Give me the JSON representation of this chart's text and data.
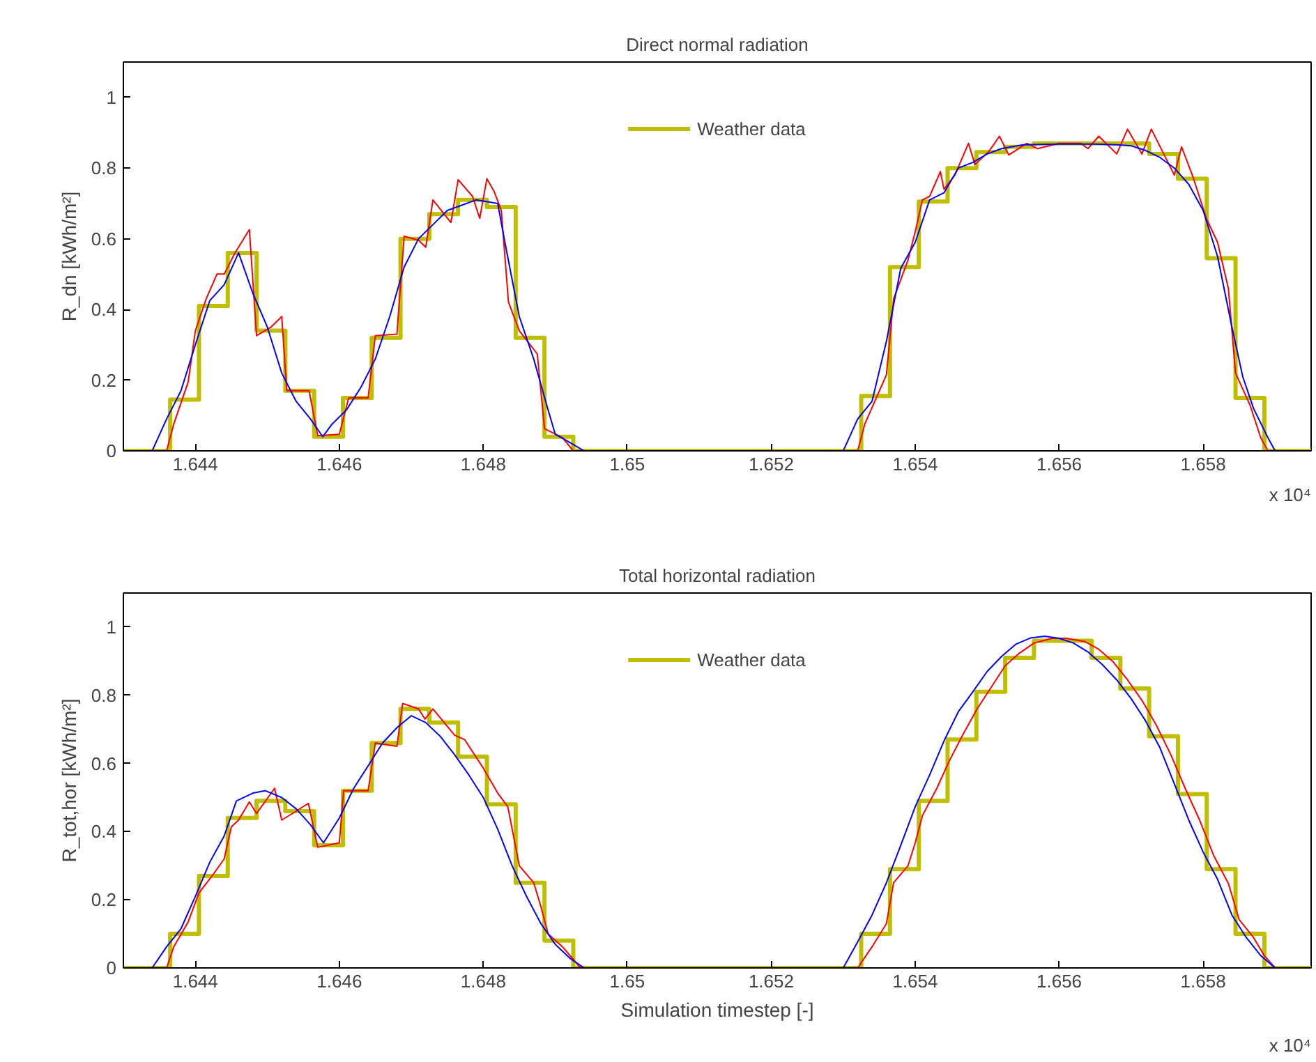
{
  "chart_data": [
    {
      "type": "line",
      "title": "Direct normal radiation",
      "ylabel": "R_dn [kWh/m²]",
      "annotations": [
        "x 10⁴"
      ],
      "xlim": [
        1.643,
        1.6595
      ],
      "ylim": [
        0,
        1.1
      ],
      "xticks": [
        1.644,
        1.646,
        1.648,
        1.65,
        1.652,
        1.654,
        1.656,
        1.658
      ],
      "yticks": [
        0,
        0.2,
        0.4,
        0.6,
        0.8,
        1
      ],
      "grid": false,
      "legend": "top",
      "series": [
        {
          "name": "Weather data",
          "type": "step",
          "color": "#bfbf00",
          "x": [
            1.643,
            1.64365,
            1.64405,
            1.64445,
            1.64485,
            1.64525,
            1.64565,
            1.64605,
            1.64645,
            1.64685,
            1.64725,
            1.64765,
            1.64805,
            1.64845,
            1.64885,
            1.64925,
            1.65325,
            1.65365,
            1.65405,
            1.65445,
            1.65485,
            1.65525,
            1.65565,
            1.65605,
            1.65645,
            1.65685,
            1.65725,
            1.65765,
            1.65805,
            1.65845,
            1.65885,
            1.6595
          ],
          "values": [
            0,
            0.145,
            0.41,
            0.56,
            0.34,
            0.17,
            0.04,
            0.15,
            0.32,
            0.6,
            0.67,
            0.71,
            0.69,
            0.32,
            0.04,
            0,
            0.155,
            0.52,
            0.705,
            0.8,
            0.845,
            0.86,
            0.87,
            0.87,
            0.87,
            0.87,
            0.84,
            0.77,
            0.545,
            0.15,
            0,
            0
          ]
        },
        {
          "color": "#ff0000",
          "x": [
            1.643,
            1.6436,
            1.6437,
            1.6439,
            1.644,
            1.64415,
            1.6443,
            1.6444,
            1.64455,
            1.64475,
            1.64485,
            1.64505,
            1.6452,
            1.64527,
            1.64558,
            1.6457,
            1.646,
            1.64613,
            1.6464,
            1.6465,
            1.6468,
            1.6469,
            1.6471,
            1.6472,
            1.6473,
            1.64755,
            1.64765,
            1.64785,
            1.64795,
            1.64805,
            1.64815,
            1.64825,
            1.64835,
            1.6485,
            1.64875,
            1.64885,
            1.6491,
            1.64925,
            1.6532,
            1.6533,
            1.6536,
            1.6537,
            1.6539,
            1.654,
            1.6541,
            1.6542,
            1.65435,
            1.6544,
            1.65455,
            1.65474,
            1.65483,
            1.65502,
            1.65517,
            1.6553,
            1.65555,
            1.6557,
            1.656,
            1.6563,
            1.6564,
            1.65655,
            1.6568,
            1.65695,
            1.65715,
            1.65728,
            1.6576,
            1.6577,
            1.65785,
            1.65805,
            1.6582,
            1.65835,
            1.65845,
            1.65865,
            1.6588,
            1.6589,
            1.6595
          ],
          "values": [
            0,
            0,
            0.076,
            0.195,
            0.34,
            0.43,
            0.5,
            0.5,
            0.56,
            0.626,
            0.326,
            0.35,
            0.38,
            0.17,
            0.17,
            0.043,
            0.047,
            0.15,
            0.15,
            0.326,
            0.33,
            0.607,
            0.596,
            0.576,
            0.71,
            0.646,
            0.767,
            0.72,
            0.658,
            0.77,
            0.734,
            0.68,
            0.42,
            0.34,
            0.274,
            0.063,
            0.037,
            0,
            0,
            0.076,
            0.215,
            0.43,
            0.54,
            0.62,
            0.71,
            0.72,
            0.79,
            0.74,
            0.78,
            0.87,
            0.81,
            0.846,
            0.89,
            0.837,
            0.87,
            0.855,
            0.87,
            0.87,
            0.855,
            0.89,
            0.84,
            0.91,
            0.84,
            0.91,
            0.78,
            0.86,
            0.78,
            0.655,
            0.59,
            0.46,
            0.22,
            0.13,
            0.037,
            0,
            0
          ]
        },
        {
          "color": "#0000ff",
          "x": [
            1.643,
            1.6434,
            1.6436,
            1.6438,
            1.644,
            1.6442,
            1.6444,
            1.6446,
            1.6448,
            1.645,
            1.6452,
            1.6454,
            1.6456,
            1.64577,
            1.6459,
            1.6461,
            1.6463,
            1.6465,
            1.6467,
            1.6469,
            1.6471,
            1.6473,
            1.6475,
            1.6477,
            1.6479,
            1.6482,
            1.6483,
            1.6485,
            1.6487,
            1.6489,
            1.649,
            1.6492,
            1.6494,
            1.653,
            1.6532,
            1.6534,
            1.6536,
            1.6538,
            1.654,
            1.6542,
            1.6544,
            1.6546,
            1.6548,
            1.655,
            1.6552,
            1.6555,
            1.656,
            1.6565,
            1.6568,
            1.657,
            1.6572,
            1.6574,
            1.6576,
            1.6578,
            1.658,
            1.6582,
            1.6584,
            1.65855,
            1.6587,
            1.6589,
            1.659,
            1.6595
          ],
          "values": [
            0,
            0,
            0.09,
            0.17,
            0.3,
            0.425,
            0.47,
            0.56,
            0.445,
            0.35,
            0.22,
            0.14,
            0.09,
            0.04,
            0.076,
            0.116,
            0.18,
            0.26,
            0.38,
            0.52,
            0.6,
            0.64,
            0.68,
            0.695,
            0.71,
            0.7,
            0.59,
            0.38,
            0.26,
            0.116,
            0.047,
            0.024,
            0,
            0,
            0.09,
            0.14,
            0.31,
            0.517,
            0.59,
            0.71,
            0.73,
            0.8,
            0.816,
            0.84,
            0.855,
            0.866,
            0.868,
            0.868,
            0.866,
            0.863,
            0.85,
            0.83,
            0.8,
            0.754,
            0.68,
            0.55,
            0.35,
            0.21,
            0.12,
            0.037,
            0,
            0
          ]
        }
      ]
    },
    {
      "type": "line",
      "title": "Total horizontal radiation",
      "xlabel": "Simulation timestep [-]",
      "ylabel": "R_tot,hor [kWh/m²]",
      "annotations": [
        "x 10⁴"
      ],
      "xlim": [
        1.643,
        1.6595
      ],
      "ylim": [
        0,
        1.1
      ],
      "xticks": [
        1.644,
        1.646,
        1.648,
        1.65,
        1.652,
        1.654,
        1.656,
        1.658
      ],
      "yticks": [
        0,
        0.2,
        0.4,
        0.6,
        0.8,
        1
      ],
      "grid": false,
      "legend": "top",
      "series": [
        {
          "name": "Weather data",
          "type": "step",
          "color": "#bfbf00",
          "x": [
            1.643,
            1.64365,
            1.64405,
            1.64445,
            1.64485,
            1.64525,
            1.64565,
            1.64605,
            1.64645,
            1.64685,
            1.64725,
            1.64765,
            1.64805,
            1.64845,
            1.64885,
            1.64925,
            1.65325,
            1.65365,
            1.65405,
            1.65445,
            1.65485,
            1.65525,
            1.65565,
            1.65605,
            1.65645,
            1.65685,
            1.65725,
            1.65765,
            1.65805,
            1.65845,
            1.65885,
            1.6595
          ],
          "values": [
            0,
            0.1,
            0.27,
            0.44,
            0.49,
            0.46,
            0.36,
            0.52,
            0.66,
            0.76,
            0.72,
            0.62,
            0.48,
            0.25,
            0.08,
            0,
            0.1,
            0.29,
            0.49,
            0.67,
            0.81,
            0.91,
            0.96,
            0.96,
            0.91,
            0.82,
            0.68,
            0.51,
            0.29,
            0.1,
            0,
            0
          ]
        },
        {
          "color": "#ff0000",
          "x": [
            1.643,
            1.6436,
            1.6437,
            1.6439,
            1.64405,
            1.64425,
            1.6444,
            1.6445,
            1.6446,
            1.64475,
            1.64485,
            1.6451,
            1.6452,
            1.6454,
            1.64557,
            1.6457,
            1.646,
            1.64606,
            1.6464,
            1.6465,
            1.6468,
            1.64688,
            1.6471,
            1.64719,
            1.6473,
            1.6476,
            1.64774,
            1.648,
            1.6482,
            1.64834,
            1.6485,
            1.6487,
            1.6488,
            1.6489,
            1.6491,
            1.64935,
            1.6532,
            1.6534,
            1.6536,
            1.6537,
            1.6539,
            1.654,
            1.6541,
            1.6543,
            1.65447,
            1.65465,
            1.65486,
            1.65506,
            1.65525,
            1.65545,
            1.65565,
            1.6559,
            1.6561,
            1.65635,
            1.65655,
            1.65675,
            1.65695,
            1.65715,
            1.65735,
            1.65755,
            1.65775,
            1.65795,
            1.65815,
            1.65835,
            1.6585,
            1.6587,
            1.65885,
            1.659,
            1.6595
          ],
          "values": [
            0,
            0,
            0.062,
            0.135,
            0.22,
            0.275,
            0.32,
            0.414,
            0.434,
            0.487,
            0.453,
            0.527,
            0.434,
            0.46,
            0.483,
            0.354,
            0.367,
            0.52,
            0.52,
            0.66,
            0.65,
            0.776,
            0.76,
            0.73,
            0.76,
            0.683,
            0.67,
            0.586,
            0.513,
            0.473,
            0.3,
            0.25,
            0.18,
            0.1,
            0.062,
            0,
            0,
            0.062,
            0.13,
            0.25,
            0.3,
            0.367,
            0.447,
            0.527,
            0.606,
            0.68,
            0.76,
            0.825,
            0.887,
            0.924,
            0.953,
            0.967,
            0.967,
            0.958,
            0.935,
            0.898,
            0.845,
            0.785,
            0.712,
            0.626,
            0.527,
            0.434,
            0.328,
            0.248,
            0.142,
            0.089,
            0.036,
            0,
            0
          ]
        },
        {
          "color": "#0000ff",
          "x": [
            1.643,
            1.6434,
            1.6436,
            1.6438,
            1.644,
            1.6442,
            1.6444,
            1.64457,
            1.6448,
            1.64497,
            1.6452,
            1.6454,
            1.6456,
            1.64578,
            1.646,
            1.6462,
            1.6464,
            1.6466,
            1.6468,
            1.647,
            1.6472,
            1.6474,
            1.6476,
            1.6478,
            1.648,
            1.6482,
            1.6484,
            1.6486,
            1.6488,
            1.649,
            1.6492,
            1.6494,
            1.653,
            1.6532,
            1.6534,
            1.6536,
            1.6538,
            1.654,
            1.6542,
            1.6544,
            1.6546,
            1.6548,
            1.655,
            1.6552,
            1.6554,
            1.6556,
            1.6558,
            1.656,
            1.6562,
            1.6564,
            1.6566,
            1.6568,
            1.657,
            1.6572,
            1.6574,
            1.6576,
            1.6578,
            1.658,
            1.6582,
            1.6584,
            1.6586,
            1.6588,
            1.659,
            1.6595
          ],
          "values": [
            0,
            0,
            0.062,
            0.115,
            0.21,
            0.31,
            0.387,
            0.49,
            0.513,
            0.52,
            0.5,
            0.467,
            0.42,
            0.367,
            0.44,
            0.527,
            0.593,
            0.66,
            0.705,
            0.74,
            0.72,
            0.68,
            0.626,
            0.566,
            0.5,
            0.407,
            0.3,
            0.21,
            0.13,
            0.069,
            0.029,
            0,
            0,
            0.076,
            0.155,
            0.25,
            0.36,
            0.473,
            0.566,
            0.666,
            0.752,
            0.81,
            0.87,
            0.914,
            0.95,
            0.968,
            0.973,
            0.967,
            0.953,
            0.927,
            0.89,
            0.845,
            0.79,
            0.725,
            0.646,
            0.54,
            0.434,
            0.34,
            0.26,
            0.155,
            0.089,
            0.036,
            0,
            0
          ]
        }
      ]
    }
  ]
}
